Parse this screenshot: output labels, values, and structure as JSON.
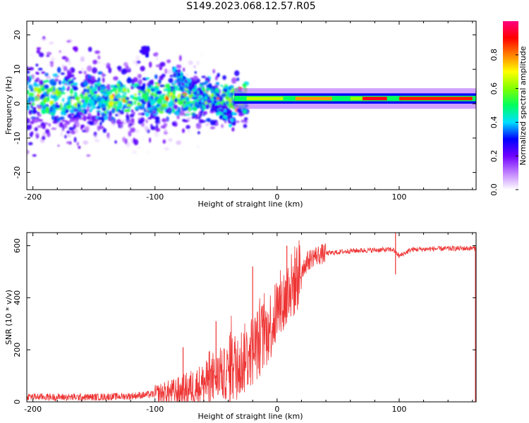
{
  "figure_title": "S149.2023.068.12.57.R05",
  "chart_data": [
    {
      "type": "heatmap",
      "title": "",
      "xlabel": "Height of straight line (km)",
      "ylabel": "Frequency (Hz)",
      "xlim": [
        -205,
        163
      ],
      "ylim": [
        -25,
        24
      ],
      "xticks": [
        -200,
        -100,
        0,
        100
      ],
      "yticks": [
        -20,
        -10,
        0,
        10,
        20
      ],
      "colorbar": {
        "label": "Normalized spectral amplitude",
        "range": [
          0.0,
          1.0
        ],
        "ticks": [
          0.0,
          0.2,
          0.4,
          0.6,
          0.8
        ],
        "colormap": [
          "#ffffff",
          "#c080ff",
          "#7000ff",
          "#0000ff",
          "#00e0ff",
          "#00ff60",
          "#80ff00",
          "#ffff00",
          "#ff8000",
          "#ff0000",
          "#ff0080"
        ]
      },
      "description_features": {
        "noise_region_km": [
          -205,
          -35
        ],
        "noise_center_freq_hz": 1,
        "noise_spread_hz": 20,
        "carrier_start_km": -35,
        "carrier_freq_hz": 1.5
      }
    },
    {
      "type": "line",
      "title": "",
      "xlabel": "Height of straight line (km)",
      "ylabel": "SNR (10 * v/v)",
      "xlim": [
        -205,
        163
      ],
      "ylim": [
        0,
        650
      ],
      "xticks": [
        -200,
        -100,
        0,
        100
      ],
      "yticks": [
        0,
        200,
        400,
        600
      ],
      "series": [
        {
          "name": "SNR",
          "color": "#ee3333",
          "envelope_x": [
            -205,
            -180,
            -150,
            -120,
            -100,
            -80,
            -60,
            -45,
            -30,
            -20,
            -10,
            -5,
            0,
            5,
            10,
            15,
            20,
            25,
            30,
            40,
            50,
            60,
            70,
            80,
            95,
            100,
            110,
            130,
            163
          ],
          "envelope_y": [
            20,
            18,
            18,
            22,
            30,
            40,
            70,
            100,
            150,
            200,
            260,
            300,
            350,
            380,
            420,
            470,
            510,
            540,
            560,
            570,
            575,
            580,
            582,
            583,
            585,
            560,
            585,
            588,
            590
          ],
          "spikes": [
            {
              "x": -77,
              "y": 210
            },
            {
              "x": -50,
              "y": 310
            },
            {
              "x": -20,
              "y": 520
            },
            {
              "x": 8,
              "y": 600
            },
            {
              "x": 97,
              "y": 650
            },
            {
              "x": 97,
              "y": 490
            }
          ]
        }
      ]
    }
  ]
}
